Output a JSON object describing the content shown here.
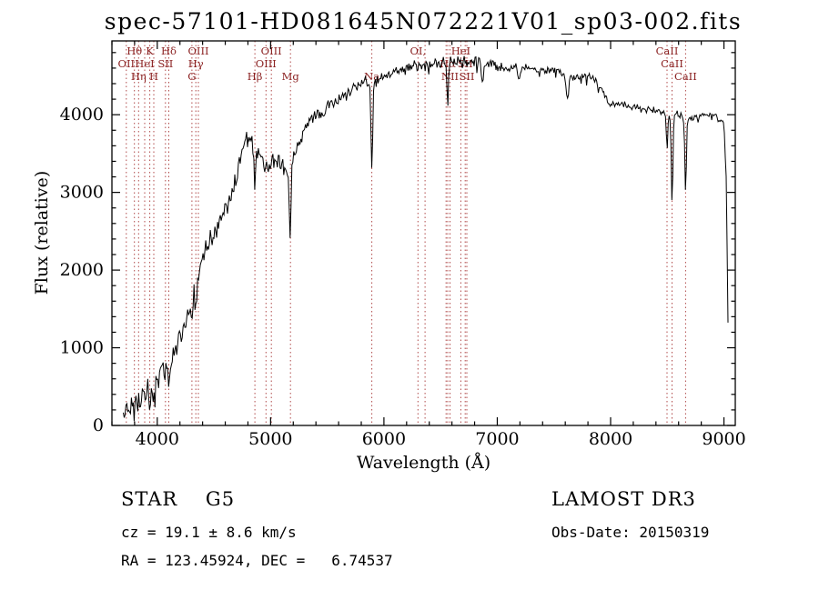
{
  "window": {
    "background": "#ffffff"
  },
  "chart_data": {
    "type": "line",
    "title": "spec-57101-HD081645N072221V01_sp03-002.fits",
    "xlabel": "Wavelength (Å)",
    "ylabel": "Flux (relative)",
    "xlim": [
      3600,
      9100
    ],
    "ylim": [
      0,
      4950
    ],
    "xticks": [
      4000,
      5000,
      6000,
      7000,
      8000,
      9000
    ],
    "yticks": [
      0,
      1000,
      2000,
      3000,
      4000
    ],
    "x_minor_step": 200,
    "y_minor_step": 200,
    "grid": false,
    "colors": {
      "line": "#000000",
      "frame": "#000000",
      "marker_line": "#b04a4a",
      "marker_label": "#8b2222"
    },
    "spectrum_envelope": {
      "wavelength": [
        3700,
        3730,
        3760,
        3790,
        3820,
        3850,
        3880,
        3910,
        3940,
        3970,
        4000,
        4040,
        4080,
        4120,
        4160,
        4200,
        4240,
        4280,
        4320,
        4360,
        4400,
        4450,
        4500,
        4550,
        4600,
        4650,
        4700,
        4750,
        4800,
        4850,
        4900,
        4950,
        5000,
        5050,
        5100,
        5150,
        5200,
        5250,
        5300,
        5350,
        5400,
        5450,
        5500,
        5550,
        5600,
        5650,
        5700,
        5750,
        5800,
        5850,
        5900,
        5950,
        6000,
        6100,
        6200,
        6300,
        6400,
        6500,
        6600,
        6700,
        6800,
        6900,
        7000,
        7100,
        7200,
        7300,
        7400,
        7500,
        7600,
        7700,
        7800,
        7850,
        7900,
        7950,
        8000,
        8100,
        8200,
        8300,
        8400,
        8500,
        8600,
        8700,
        8800,
        8900,
        8950,
        9000,
        9020,
        9040
      ],
      "flux": [
        150,
        220,
        280,
        250,
        300,
        340,
        380,
        430,
        470,
        520,
        620,
        700,
        760,
        820,
        980,
        1150,
        1320,
        1500,
        1680,
        1900,
        2150,
        2320,
        2480,
        2620,
        2780,
        2950,
        3200,
        3500,
        3700,
        3650,
        3450,
        3300,
        3350,
        3400,
        3380,
        3250,
        3450,
        3650,
        3800,
        3900,
        3980,
        4050,
        4100,
        4150,
        4200,
        4260,
        4310,
        4360,
        4400,
        4420,
        4400,
        4450,
        4500,
        4560,
        4600,
        4620,
        4650,
        4660,
        4700,
        4700,
        4680,
        4650,
        4620,
        4600,
        4610,
        4590,
        4560,
        4570,
        4520,
        4480,
        4500,
        4470,
        4380,
        4250,
        4120,
        4150,
        4100,
        4060,
        4050,
        4010,
        4000,
        3960,
        3990,
        4000,
        3960,
        3900,
        3200,
        900
      ]
    },
    "absorption_lines": [
      {
        "wavelength": 3934,
        "depth": 260,
        "width": 8
      },
      {
        "wavelength": 3969,
        "depth": 260,
        "width": 8
      },
      {
        "wavelength": 4102,
        "depth": 320,
        "width": 8
      },
      {
        "wavelength": 4306,
        "depth": 260,
        "width": 10
      },
      {
        "wavelength": 4340,
        "depth": 320,
        "width": 8
      },
      {
        "wavelength": 4861,
        "depth": 560,
        "width": 10
      },
      {
        "wavelength": 5172,
        "depth": 900,
        "width": 10
      },
      {
        "wavelength": 5893,
        "depth": 1150,
        "width": 10
      },
      {
        "wavelength": 6563,
        "depth": 600,
        "width": 9
      },
      {
        "wavelength": 6870,
        "depth": 280,
        "width": 14
      },
      {
        "wavelength": 7190,
        "depth": 170,
        "width": 12
      },
      {
        "wavelength": 7620,
        "depth": 330,
        "width": 16
      },
      {
        "wavelength": 8498,
        "depth": 450,
        "width": 9
      },
      {
        "wavelength": 8542,
        "depth": 1150,
        "width": 10
      },
      {
        "wavelength": 8662,
        "depth": 950,
        "width": 10
      }
    ],
    "noise": {
      "seed": 20150319,
      "wavelength": [
        3700,
        4200,
        4800,
        5400,
        6000,
        6600,
        7200,
        8000,
        9040
      ],
      "amplitude": [
        240,
        190,
        140,
        110,
        85,
        95,
        65,
        55,
        50
      ],
      "sample_step": 8,
      "spike_probability": 0.035
    },
    "spectral_markers": {
      "lines": [
        3727,
        3798,
        3835,
        3889,
        3934,
        3969,
        4072,
        4102,
        4306,
        4340,
        4363,
        4861,
        4959,
        5007,
        5175,
        5893,
        6300,
        6363,
        6548,
        6563,
        6583,
        6678,
        6717,
        6731,
        8498,
        8542,
        8662
      ],
      "labels": [
        {
          "text": "Hθ",
          "wavelength": 3798,
          "row": 1
        },
        {
          "text": "K",
          "wavelength": 3934,
          "row": 1
        },
        {
          "text": "Hδ",
          "wavelength": 4102,
          "row": 1
        },
        {
          "text": "OIII",
          "wavelength": 4363,
          "row": 1
        },
        {
          "text": "OIII",
          "wavelength": 5007,
          "row": 1
        },
        {
          "text": "OI,",
          "wavelength": 6300,
          "row": 1
        },
        {
          "text": "HeI",
          "wavelength": 6678,
          "row": 1
        },
        {
          "text": "CaII",
          "wavelength": 8498,
          "row": 1
        },
        {
          "text": "OII",
          "wavelength": 3727,
          "row": 2
        },
        {
          "text": "HeI",
          "wavelength": 3889,
          "row": 2
        },
        {
          "text": "SII",
          "wavelength": 4072,
          "row": 2
        },
        {
          "text": "Hγ",
          "wavelength": 4340,
          "row": 2
        },
        {
          "text": "OIII",
          "wavelength": 4959,
          "row": 2
        },
        {
          "text": "Hα",
          "wavelength": 6563,
          "row": 2
        },
        {
          "text": "SII",
          "wavelength": 6717,
          "row": 2
        },
        {
          "text": "CaII",
          "wavelength": 8542,
          "row": 2
        },
        {
          "text": "Hη",
          "wavelength": 3835,
          "row": 3
        },
        {
          "text": "H",
          "wavelength": 3969,
          "row": 3
        },
        {
          "text": "G",
          "wavelength": 4306,
          "row": 3
        },
        {
          "text": "Hβ",
          "wavelength": 4861,
          "row": 3
        },
        {
          "text": "Mg",
          "wavelength": 5175,
          "row": 3
        },
        {
          "text": "Na",
          "wavelength": 5893,
          "row": 3
        },
        {
          "text": "NII",
          "wavelength": 6583,
          "row": 3
        },
        {
          "text": "SII",
          "wavelength": 6731,
          "row": 3
        },
        {
          "text": "CaII",
          "wavelength": 8662,
          "row": 3
        }
      ]
    }
  },
  "footer": {
    "classification": "STAR    G5",
    "survey": "LAMOST DR3",
    "cz": "cz = 19.1 ± 8.6 km/s",
    "obs_date": "Obs-Date: 20150319",
    "ra_dec": "RA = 123.45924, DEC =   6.74537"
  }
}
